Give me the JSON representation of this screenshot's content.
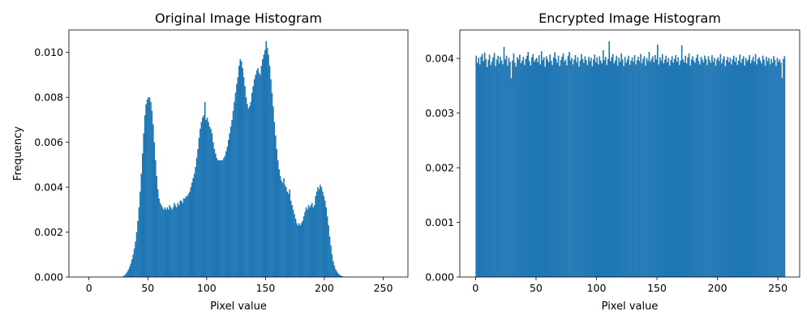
{
  "chart_data": [
    {
      "type": "bar",
      "title": "Original Image Histogram",
      "xlabel": "Pixel value",
      "ylabel": "Frequency",
      "xlim": [
        -17,
        271
      ],
      "ylim": [
        0,
        0.011
      ],
      "xticks": [
        0,
        50,
        100,
        150,
        200,
        250
      ],
      "xtick_labels": [
        "0",
        "50",
        "100",
        "150",
        "200",
        "250"
      ],
      "yticks": [
        0,
        0.002,
        0.004,
        0.006,
        0.008,
        0.01
      ],
      "ytick_labels": [
        "0.000",
        "0.002",
        "0.004",
        "0.006",
        "0.008",
        "0.010"
      ],
      "color": "#1f77b4",
      "grid": false,
      "bin_start": 0,
      "bin_width": 1,
      "values": [
        0,
        0,
        0,
        0,
        0,
        0,
        0,
        0,
        0,
        0,
        0,
        0,
        0,
        0,
        0,
        0,
        0,
        0,
        0,
        0,
        0,
        0,
        0,
        0,
        0,
        0,
        0,
        0,
        2e-05,
        5e-05,
        9e-05,
        0.00015,
        0.00023,
        0.00033,
        0.00045,
        0.0006,
        0.00078,
        0.001,
        0.00127,
        0.00158,
        0.002,
        0.0025,
        0.0031,
        0.0038,
        0.0046,
        0.0055,
        0.0064,
        0.0072,
        0.0077,
        0.0079,
        0.008,
        0.008,
        0.0078,
        0.0074,
        0.0068,
        0.006,
        0.0052,
        0.0045,
        0.0039,
        0.0035,
        0.0033,
        0.0032,
        0.0031,
        0.003,
        0.0031,
        0.003,
        0.0031,
        0.003,
        0.0032,
        0.0031,
        0.003,
        0.0031,
        0.0033,
        0.0032,
        0.0031,
        0.0033,
        0.0032,
        0.0034,
        0.0034,
        0.0033,
        0.0035,
        0.0035,
        0.0036,
        0.0036,
        0.0037,
        0.0038,
        0.004,
        0.0042,
        0.0044,
        0.0046,
        0.0049,
        0.0053,
        0.0057,
        0.0062,
        0.0066,
        0.0069,
        0.0071,
        0.0072,
        0.0078,
        0.007,
        0.0071,
        0.0069,
        0.0067,
        0.0066,
        0.0064,
        0.006,
        0.0057,
        0.0055,
        0.0053,
        0.0052,
        0.0052,
        0.0052,
        0.0052,
        0.0052,
        0.0053,
        0.0054,
        0.0056,
        0.0058,
        0.0061,
        0.0064,
        0.0067,
        0.007,
        0.0074,
        0.0078,
        0.0082,
        0.0086,
        0.0089,
        0.0094,
        0.0097,
        0.0096,
        0.0093,
        0.0089,
        0.0085,
        0.008,
        0.0077,
        0.0075,
        0.0076,
        0.0078,
        0.0082,
        0.0085,
        0.0088,
        0.009,
        0.0092,
        0.0093,
        0.0091,
        0.009,
        0.0094,
        0.0097,
        0.0099,
        0.0101,
        0.0105,
        0.0102,
        0.0099,
        0.0094,
        0.0088,
        0.0082,
        0.0076,
        0.0069,
        0.0063,
        0.0057,
        0.0052,
        0.0048,
        0.0045,
        0.0043,
        0.0042,
        0.0044,
        0.0041,
        0.004,
        0.0038,
        0.0037,
        0.0039,
        0.0034,
        0.0032,
        0.003,
        0.0028,
        0.0026,
        0.0024,
        0.0023,
        0.0024,
        0.0023,
        0.0024,
        0.0025,
        0.0027,
        0.0029,
        0.0031,
        0.003,
        0.0032,
        0.0031,
        0.0032,
        0.0033,
        0.0031,
        0.0032,
        0.0036,
        0.0038,
        0.004,
        0.0039,
        0.0041,
        0.004,
        0.0038,
        0.0036,
        0.0034,
        0.0031,
        0.0027,
        0.0023,
        0.0018,
        0.0014,
        0.001,
        0.0007,
        0.0005,
        0.00035,
        0.00025,
        0.00017,
        0.00012,
        8e-05,
        5e-05,
        3e-05,
        2e-05,
        1e-05,
        5e-06,
        0,
        0,
        0,
        0,
        0,
        0,
        0,
        0,
        0,
        0,
        0,
        0,
        0,
        0,
        0,
        0,
        0,
        0,
        0,
        0,
        0,
        0,
        0,
        0,
        0,
        0,
        0
      ]
    },
    {
      "type": "bar",
      "title": "Encrypted Image Histogram",
      "xlabel": "Pixel value",
      "ylabel": "",
      "xlim": [
        -13,
        268
      ],
      "ylim": [
        0,
        0.00452
      ],
      "xticks": [
        0,
        50,
        100,
        150,
        200,
        250
      ],
      "xtick_labels": [
        "0",
        "50",
        "100",
        "150",
        "200",
        "250"
      ],
      "yticks": [
        0,
        0.001,
        0.002,
        0.003,
        0.004
      ],
      "ytick_labels": [
        "0.000",
        "0.001",
        "0.002",
        "0.003",
        "0.004"
      ],
      "color": "#1f77b4",
      "grid": false,
      "bin_start": 0,
      "bin_width": 1,
      "values": [
        0.00405,
        0.00392,
        0.00401,
        0.00389,
        0.00403,
        0.00408,
        0.00395,
        0.00411,
        0.00399,
        0.00384,
        0.00397,
        0.00407,
        0.00388,
        0.00394,
        0.00402,
        0.0041,
        0.00386,
        0.00398,
        0.00405,
        0.00391,
        0.00403,
        0.00396,
        0.00389,
        0.00421,
        0.00398,
        0.00405,
        0.00387,
        0.00401,
        0.00394,
        0.00364,
        0.00396,
        0.00409,
        0.00392,
        0.00385,
        0.00402,
        0.00398,
        0.00407,
        0.00391,
        0.00396,
        0.00403,
        0.00388,
        0.00399,
        0.00405,
        0.00412,
        0.00395,
        0.00387,
        0.00402,
        0.00408,
        0.00394,
        0.00398,
        0.00401,
        0.00393,
        0.00406,
        0.00389,
        0.00413,
        0.00397,
        0.00402,
        0.00385,
        0.00404,
        0.00398,
        0.00393,
        0.00407,
        0.00396,
        0.00388,
        0.00402,
        0.00411,
        0.00399,
        0.00392,
        0.00405,
        0.00386,
        0.00397,
        0.00403,
        0.00409,
        0.00394,
        0.00398,
        0.00387,
        0.00405,
        0.00412,
        0.00396,
        0.00401,
        0.00389,
        0.00398,
        0.00406,
        0.00393,
        0.00402,
        0.00385,
        0.00396,
        0.00408,
        0.00399,
        0.00392,
        0.00404,
        0.00397,
        0.00388,
        0.00403,
        0.00395,
        0.00401,
        0.00386,
        0.00398,
        0.00407,
        0.00393,
        0.00402,
        0.00389,
        0.00404,
        0.00396,
        0.00391,
        0.00415,
        0.00397,
        0.00403,
        0.00388,
        0.00399,
        0.00431,
        0.00395,
        0.00402,
        0.00408,
        0.00391,
        0.00396,
        0.00405,
        0.00387,
        0.00401,
        0.00394,
        0.00409,
        0.00398,
        0.00386,
        0.00403,
        0.00392,
        0.00398,
        0.00405,
        0.00388,
        0.00396,
        0.00402,
        0.00394,
        0.00406,
        0.00389,
        0.00397,
        0.00403,
        0.00395,
        0.00408,
        0.00391,
        0.00399,
        0.00404,
        0.00387,
        0.00401,
        0.00396,
        0.00412,
        0.00394,
        0.00399,
        0.00404,
        0.00393,
        0.00406,
        0.00398,
        0.00425,
        0.00389,
        0.00402,
        0.00396,
        0.00408,
        0.00391,
        0.00398,
        0.00405,
        0.00393,
        0.00401,
        0.00387,
        0.00397,
        0.00404,
        0.00392,
        0.00399,
        0.00406,
        0.00394,
        0.00402,
        0.00388,
        0.00396,
        0.00424,
        0.00398,
        0.00393,
        0.00405,
        0.00391,
        0.00402,
        0.00409,
        0.00387,
        0.00398,
        0.00404,
        0.00396,
        0.00392,
        0.00401,
        0.00407,
        0.00395,
        0.00389,
        0.00403,
        0.00398,
        0.00393,
        0.00405,
        0.00399,
        0.00388,
        0.00404,
        0.00397,
        0.00392,
        0.00406,
        0.00394,
        0.00401,
        0.00387,
        0.00398,
        0.00402,
        0.00395,
        0.00408,
        0.00391,
        0.00399,
        0.00404,
        0.00386,
        0.00397,
        0.00403,
        0.00393,
        0.00401,
        0.00389,
        0.00398,
        0.00405,
        0.00394,
        0.00402,
        0.00388,
        0.00396,
        0.00407,
        0.00392,
        0.00399,
        0.00404,
        0.00387,
        0.00401,
        0.00395,
        0.00398,
        0.00406,
        0.00391,
        0.00397,
        0.00403,
        0.00394,
        0.00408,
        0.00389,
        0.00399,
        0.00402,
        0.00396,
        0.00391,
        0.00405,
        0.00398,
        0.00387,
        0.00403,
        0.00395,
        0.00401,
        0.00389,
        0.00399,
        0.00392,
        0.00404,
        0.00397,
        0.00386,
        0.00401,
        0.00394,
        0.00398,
        0.00392,
        0.00364,
        0.00399,
        0.00404
      ]
    }
  ]
}
